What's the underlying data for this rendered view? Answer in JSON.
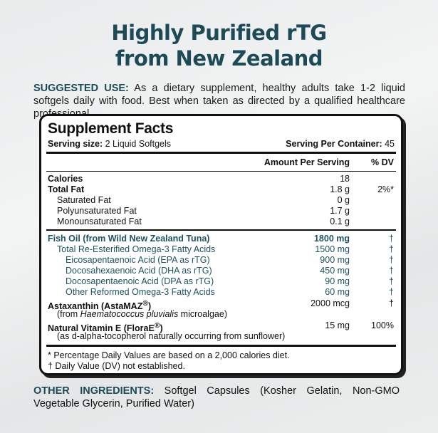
{
  "title": {
    "line1": "Highly Purified rTG",
    "line2": "from New Zealand"
  },
  "suggested_use": {
    "label": "SUGGESTED USE:",
    "text": " As a dietary supplement, healthy adults take 1-2 liquid softgels daily with food. Best when taken as directed by a qualified healthcare professional."
  },
  "facts": {
    "title": "Supplement Facts",
    "serving_size_label": "Serving size:",
    "serving_size": " 2 Liquid Softgels",
    "servings_label": "Serving Per Container:",
    "servings": " 45",
    "col_amount": "Amount Per Serving",
    "col_dv": "% DV",
    "nutrition": [
      {
        "name": "Calories",
        "amount": "18",
        "dv": ""
      },
      {
        "name": "Total Fat",
        "amount": "1.8 g",
        "dv": "2%*"
      },
      {
        "name": "Saturated Fat",
        "amount": "0 g",
        "dv": ""
      },
      {
        "name": "Polyunsaturated Fat",
        "amount": "1.7 g",
        "dv": ""
      },
      {
        "name": "Monounsaturated Fat",
        "amount": "0.1 g",
        "dv": ""
      }
    ],
    "fish": [
      {
        "name": "Fish Oil (from Wild New Zealand Tuna)",
        "amount": "1800 mg",
        "dv": "†"
      },
      {
        "name": "Total Re-Esterified Omega-3 Fatty Acids",
        "amount": "1500 mg",
        "dv": "†"
      },
      {
        "name": "Eicosapentaenoic Acid (EPA as rTG)",
        "amount": "900 mg",
        "dv": "†"
      },
      {
        "name": "Docosahexaenoic Acid (DHA as rTG)",
        "amount": "450 mg",
        "dv": "†"
      },
      {
        "name": "Docosapentaenoic Acid (DPA as rTG)",
        "amount": "90 mg",
        "dv": "†"
      },
      {
        "name": "Other Reformed Omega-3 Fatty Acids",
        "amount": "60 mg",
        "dv": "†"
      }
    ],
    "astaxanthin": {
      "name": "Astaxanthin (AstaMAZ",
      "reg": "®",
      ")": ")",
      "amount": "2000 mcg",
      "dv": "†",
      "note_pre": "(from ",
      "note_italic": "Haematococcus pluvialis",
      "note_post": " microalgae)"
    },
    "vitamin_e": {
      "name": "Natural Vitamin E (FloraE",
      "reg": "®",
      ")": ")",
      "amount": "15 mg",
      "dv": "100%",
      "note": "(as d-alpha-tocopherol naturally occurring from sunflower)"
    },
    "footnote1": "* Percentage Daily Values are based on a 2,000 calories diet.",
    "footnote2": "† Daily Value (DV) not established."
  },
  "other_ingredients": {
    "label": "OTHER INGREDIENTS:",
    "text": " Softgel Capsules (Kosher Gelatin, Non-GMO Vegetable Glycerin, Purified Water)"
  },
  "colors": {
    "accent": "#1d4a56",
    "border": "#111111"
  }
}
